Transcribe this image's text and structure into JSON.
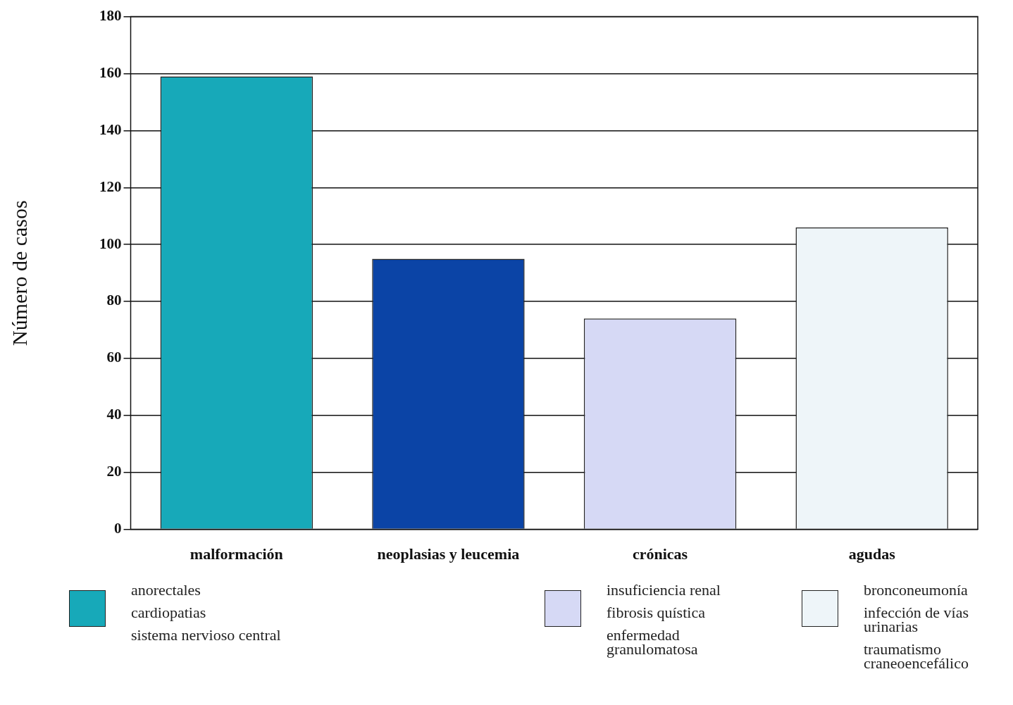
{
  "chart_data": {
    "type": "bar",
    "ylabel": "Número de casos",
    "categories": [
      "malformación",
      "neoplasias y leucemia",
      "crónicas",
      "agudas"
    ],
    "values": [
      159,
      95,
      74,
      106
    ],
    "colors": [
      "#17a9b9",
      "#0b44a6",
      "#d6d9f5",
      "#eef5f9"
    ],
    "ylim": [
      0,
      180
    ],
    "yticks": [
      0,
      20,
      40,
      60,
      80,
      100,
      120,
      140,
      160,
      180
    ],
    "grid": "y",
    "legend": false,
    "annotations": [
      "anorectales",
      "cardiopatias",
      "sistema nervioso central",
      "insuficiencia renal",
      "fibrosis quística",
      "enfermedad\ngranulomatosa",
      "bronconeumonía",
      "infección de vías\nurinarias",
      "traumatismo\ncraneoencefálico"
    ]
  }
}
